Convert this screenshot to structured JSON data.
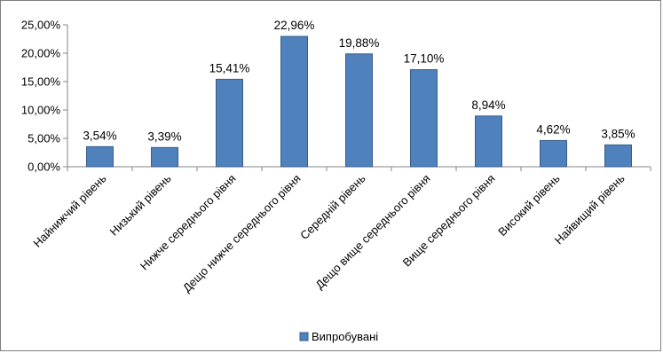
{
  "chart_data": {
    "type": "bar",
    "title": "",
    "xlabel": "",
    "ylabel": "",
    "categories": [
      "Найнижчий рівень",
      "Низький рівень",
      "Нижче середнього рівня",
      "Дещо нижче середнього рівня",
      "Середній рівень",
      "Дещо вище середнього рівня",
      "Вище середнього рівня",
      "Високий рівень",
      "Найвищий рівень"
    ],
    "series": [
      {
        "name": "Випробувані",
        "values": [
          3.54,
          3.39,
          15.41,
          22.96,
          19.88,
          17.1,
          8.94,
          4.62,
          3.85
        ],
        "data_labels": [
          "3,54%",
          "3,39%",
          "15,41%",
          "22,96%",
          "19,88%",
          "17,10%",
          "8,94%",
          "4,62%",
          "3,85%"
        ],
        "color": "#4f81bd",
        "edge_color": "#385d8a"
      }
    ],
    "ylim": [
      0,
      25
    ],
    "yticks": [
      0,
      5,
      10,
      15,
      20,
      25
    ],
    "ytick_labels": [
      "0,00%",
      "5,00%",
      "10,00%",
      "15,00%",
      "20,00%",
      "25,00%"
    ],
    "grid": false,
    "legend_position": "bottom"
  }
}
